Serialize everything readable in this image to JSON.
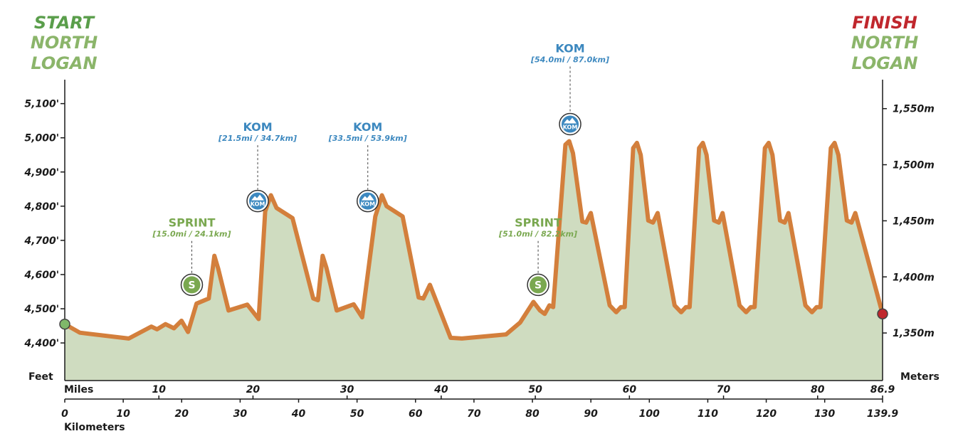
{
  "start": {
    "tag": "START",
    "line1": "NORTH",
    "line2": "LOGAN"
  },
  "finish": {
    "tag": "FINISH",
    "line1": "NORTH",
    "line2": "LOGAN"
  },
  "colors": {
    "start_green": "#5a9e4b",
    "place_green": "#8bb56a",
    "finish_red": "#c0272d",
    "profile_line": "#d37f3c",
    "profile_fill": "#cfdcc0",
    "kom_blue": "#3c88bf",
    "sprint_green": "#7aa850",
    "text": "#1a1a1a"
  },
  "chart_data": {
    "type": "area",
    "x_unit": "miles",
    "y_unit": "feet",
    "xlim": [
      0,
      86.9
    ],
    "ylim": [
      4290,
      5170
    ],
    "left_axis_title": "Feet",
    "right_axis_title": "Meters",
    "miles_label": "Miles",
    "km_label": "Kilometers",
    "left_ticks": [
      {
        "value": 4400,
        "label": "4,400'"
      },
      {
        "value": 4500,
        "label": "4,500'"
      },
      {
        "value": 4600,
        "label": "4,600'"
      },
      {
        "value": 4700,
        "label": "4,700'"
      },
      {
        "value": 4800,
        "label": "4,800'"
      },
      {
        "value": 4900,
        "label": "4,900'"
      },
      {
        "value": 5000,
        "label": "5,000'"
      },
      {
        "value": 5100,
        "label": "5,100'"
      }
    ],
    "right_ticks": [
      {
        "value": 1350,
        "label": "1,350m"
      },
      {
        "value": 1400,
        "label": "1,400m"
      },
      {
        "value": 1450,
        "label": "1,450m"
      },
      {
        "value": 1500,
        "label": "1,500m"
      },
      {
        "value": 1550,
        "label": "1,550m"
      }
    ],
    "mile_ticks": [
      {
        "value": 10,
        "label": "10"
      },
      {
        "value": 20,
        "label": "20"
      },
      {
        "value": 30,
        "label": "30"
      },
      {
        "value": 40,
        "label": "40"
      },
      {
        "value": 50,
        "label": "50"
      },
      {
        "value": 60,
        "label": "60"
      },
      {
        "value": 70,
        "label": "70"
      },
      {
        "value": 80,
        "label": "80"
      },
      {
        "value": 86.9,
        "label": "86.9"
      }
    ],
    "km_ticks": [
      {
        "value": 0,
        "label": "0"
      },
      {
        "value": 10,
        "label": "10"
      },
      {
        "value": 20,
        "label": "20"
      },
      {
        "value": 30,
        "label": "30"
      },
      {
        "value": 40,
        "label": "40"
      },
      {
        "value": 50,
        "label": "50"
      },
      {
        "value": 60,
        "label": "60"
      },
      {
        "value": 70,
        "label": "70"
      },
      {
        "value": 80,
        "label": "80"
      },
      {
        "value": 90,
        "label": "90"
      },
      {
        "value": 100,
        "label": "100"
      },
      {
        "value": 110,
        "label": "110"
      },
      {
        "value": 120,
        "label": "120"
      },
      {
        "value": 130,
        "label": "130"
      },
      {
        "value": 139.9,
        "label": "139.9"
      }
    ],
    "profile": [
      [
        0,
        4455
      ],
      [
        1.6,
        4430
      ],
      [
        6.8,
        4413
      ],
      [
        9.2,
        4448
      ],
      [
        9.8,
        4440
      ],
      [
        10.7,
        4455
      ],
      [
        11.6,
        4443
      ],
      [
        12.4,
        4465
      ],
      [
        13.1,
        4432
      ],
      [
        14.0,
        4515
      ],
      [
        15.3,
        4530
      ],
      [
        15.9,
        4655
      ],
      [
        16.3,
        4618
      ],
      [
        17.4,
        4495
      ],
      [
        19.4,
        4512
      ],
      [
        20.6,
        4470
      ],
      [
        21.3,
        4785
      ],
      [
        21.9,
        4832
      ],
      [
        22.5,
        4795
      ],
      [
        24.2,
        4765
      ],
      [
        26.4,
        4530
      ],
      [
        26.9,
        4525
      ],
      [
        27.4,
        4655
      ],
      [
        27.8,
        4620
      ],
      [
        28.9,
        4495
      ],
      [
        30.7,
        4513
      ],
      [
        31.6,
        4475
      ],
      [
        33.0,
        4770
      ],
      [
        33.7,
        4832
      ],
      [
        34.2,
        4800
      ],
      [
        35.9,
        4770
      ],
      [
        37.6,
        4533
      ],
      [
        38.1,
        4530
      ],
      [
        38.8,
        4570
      ],
      [
        41.0,
        4415
      ],
      [
        42.2,
        4413
      ],
      [
        46.9,
        4425
      ],
      [
        48.4,
        4460
      ],
      [
        49.8,
        4520
      ],
      [
        50.5,
        4495
      ],
      [
        51.0,
        4485
      ],
      [
        51.5,
        4510
      ],
      [
        51.9,
        4505
      ],
      [
        53.2,
        4980
      ],
      [
        53.6,
        4990
      ],
      [
        54.0,
        4955
      ],
      [
        55.0,
        4755
      ],
      [
        55.4,
        4752
      ],
      [
        55.9,
        4780
      ],
      [
        57.9,
        4510
      ],
      [
        58.6,
        4490
      ],
      [
        59.1,
        4505
      ],
      [
        59.5,
        4505
      ],
      [
        60.4,
        4970
      ],
      [
        60.8,
        4985
      ],
      [
        61.2,
        4950
      ],
      [
        62.0,
        4758
      ],
      [
        62.5,
        4752
      ],
      [
        63.0,
        4780
      ],
      [
        64.8,
        4510
      ],
      [
        65.5,
        4490
      ],
      [
        66.0,
        4505
      ],
      [
        66.4,
        4505
      ],
      [
        67.4,
        4970
      ],
      [
        67.8,
        4985
      ],
      [
        68.2,
        4950
      ],
      [
        69.0,
        4758
      ],
      [
        69.5,
        4752
      ],
      [
        69.9,
        4780
      ],
      [
        71.7,
        4510
      ],
      [
        72.4,
        4490
      ],
      [
        72.9,
        4505
      ],
      [
        73.3,
        4505
      ],
      [
        74.4,
        4970
      ],
      [
        74.8,
        4985
      ],
      [
        75.2,
        4950
      ],
      [
        76.0,
        4758
      ],
      [
        76.5,
        4752
      ],
      [
        76.9,
        4780
      ],
      [
        78.7,
        4510
      ],
      [
        79.4,
        4490
      ],
      [
        79.9,
        4505
      ],
      [
        80.3,
        4505
      ],
      [
        81.4,
        4970
      ],
      [
        81.8,
        4985
      ],
      [
        82.2,
        4950
      ],
      [
        83.1,
        4758
      ],
      [
        83.6,
        4752
      ],
      [
        84.0,
        4780
      ],
      [
        86.9,
        4485
      ]
    ],
    "annotations": [
      {
        "kind": "sprint",
        "type_label": "SPRINT",
        "position_label": "[15.0mi / 24.1km]",
        "mile": 13.5,
        "badge_elev": 4570,
        "badge_text": "S",
        "label_elev": 4740
      },
      {
        "kind": "kom",
        "type_label": "KOM",
        "position_label": "[21.5mi / 34.7km]",
        "mile": 20.5,
        "badge_elev": 4815,
        "badge_text": "KOM",
        "label_elev": 5020
      },
      {
        "kind": "kom",
        "type_label": "KOM",
        "position_label": "[33.5mi / 53.9km]",
        "mile": 32.2,
        "badge_elev": 4815,
        "badge_text": "KOM",
        "label_elev": 5020
      },
      {
        "kind": "sprint",
        "type_label": "SPRINT",
        "position_label": "[51.0mi / 82.2km]",
        "mile": 50.3,
        "badge_elev": 4570,
        "badge_text": "S",
        "label_elev": 4740
      },
      {
        "kind": "kom",
        "type_label": "KOM",
        "position_label": "[54.0mi / 87.0km]",
        "mile": 53.7,
        "badge_elev": 5040,
        "badge_text": "KOM",
        "label_elev": 5250
      }
    ]
  }
}
